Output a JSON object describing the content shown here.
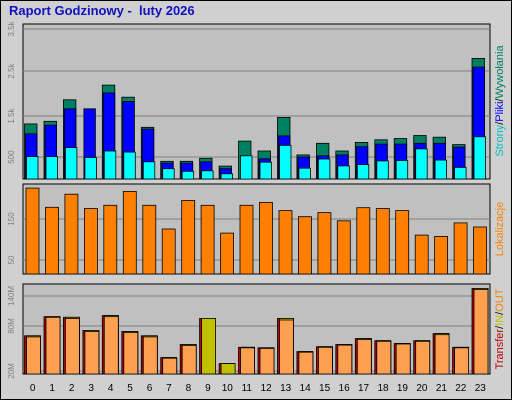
{
  "title": "Raport Godzinowy -  luty 2026",
  "chart_data": [
    {
      "type": "bar",
      "panel": "hits",
      "categories": [
        "0",
        "1",
        "2",
        "3",
        "4",
        "5",
        "6",
        "7",
        "8",
        "9",
        "10",
        "11",
        "12",
        "13",
        "14",
        "15",
        "16",
        "17",
        "18",
        "19",
        "20",
        "21",
        "22",
        "23"
      ],
      "series": [
        {
          "name": "Strony",
          "color": "#00ffff",
          "values": [
            520,
            520,
            730,
            500,
            650,
            625,
            400,
            240,
            180,
            190,
            120,
            540,
            390,
            780,
            250,
            465,
            305,
            335,
            420,
            430,
            700,
            440,
            270,
            980
          ]
        },
        {
          "name": "Pliki",
          "color": "#0000ff",
          "values": [
            1050,
            1250,
            1630,
            1630,
            2000,
            1800,
            1160,
            370,
            370,
            400,
            240,
            0,
            470,
            1000,
            510,
            540,
            560,
            750,
            810,
            810,
            830,
            830,
            740,
            2600
          ]
        },
        {
          "name": "Wywołania",
          "color": "#008060",
          "values": [
            1280,
            1340,
            1840,
            0,
            2180,
            1900,
            1200,
            410,
            410,
            480,
            300,
            880,
            650,
            1430,
            560,
            830,
            650,
            850,
            910,
            940,
            1010,
            970,
            800,
            2800
          ]
        }
      ],
      "ylim": [
        0,
        3600
      ],
      "yticks": [
        "500",
        "1.5k",
        "2.5k",
        "3.5k"
      ],
      "ylabel_parts": [
        "Strony",
        "/",
        "Pliki",
        "/",
        "Wywołania"
      ],
      "ylabel_colors": [
        "#00c0c0",
        "#000000",
        "#0000ff",
        "#000000",
        "#008060"
      ]
    },
    {
      "type": "bar",
      "panel": "visits",
      "categories": [
        "0",
        "1",
        "2",
        "3",
        "4",
        "5",
        "6",
        "7",
        "8",
        "9",
        "10",
        "11",
        "12",
        "13",
        "14",
        "15",
        "16",
        "17",
        "18",
        "19",
        "20",
        "21",
        "22",
        "23"
      ],
      "series": [
        {
          "name": "Lokalizacje",
          "color": "#ff8000",
          "values": [
            210,
            163,
            195,
            160,
            168,
            202,
            168,
            110,
            180,
            168,
            100,
            168,
            175,
            155,
            140,
            150,
            130,
            162,
            160,
            155,
            95,
            92,
            125,
            115
          ]
        }
      ],
      "ylim": [
        0,
        220
      ],
      "yticks": [
        "50",
        "150"
      ],
      "ylabel_parts": [
        "Lokalizacje"
      ],
      "ylabel_colors": [
        "#ff8000"
      ]
    },
    {
      "type": "bar",
      "panel": "transfer",
      "categories": [
        "0",
        "1",
        "2",
        "3",
        "4",
        "5",
        "6",
        "7",
        "8",
        "9",
        "10",
        "11",
        "12",
        "13",
        "14",
        "15",
        "16",
        "17",
        "18",
        "19",
        "20",
        "21",
        "22",
        "23"
      ],
      "series": [
        {
          "name": "Transfer",
          "color": "#c00000",
          "values": [
            70,
            105,
            104,
            80,
            107,
            78,
            70,
            30,
            54,
            102,
            19,
            49,
            48,
            102,
            41,
            50,
            54,
            65,
            61,
            56,
            61,
            74,
            49,
            157
          ]
        },
        {
          "name": "IN",
          "color": "#c0c000",
          "values": [
            70,
            105,
            104,
            80,
            107,
            78,
            70,
            30,
            54,
            102,
            19,
            49,
            48,
            102,
            41,
            50,
            54,
            65,
            61,
            56,
            61,
            74,
            49,
            157
          ]
        },
        {
          "name": "OUT",
          "color": "#ffa050",
          "values": [
            68,
            104,
            102,
            78,
            105,
            76,
            68,
            29,
            52,
            0,
            0,
            48,
            47,
            99,
            40,
            49,
            53,
            63,
            60,
            55,
            60,
            72,
            48,
            155
          ]
        }
      ],
      "ylim": [
        0,
        165
      ],
      "yticks": [
        "20M",
        "80M",
        "140M"
      ],
      "ylabel_parts": [
        "Transfer",
        "/",
        "IN",
        "/",
        "OUT"
      ],
      "ylabel_colors": [
        "#c00000",
        "#000000",
        "#c0c000",
        "#000000",
        "#ff8000"
      ]
    }
  ]
}
